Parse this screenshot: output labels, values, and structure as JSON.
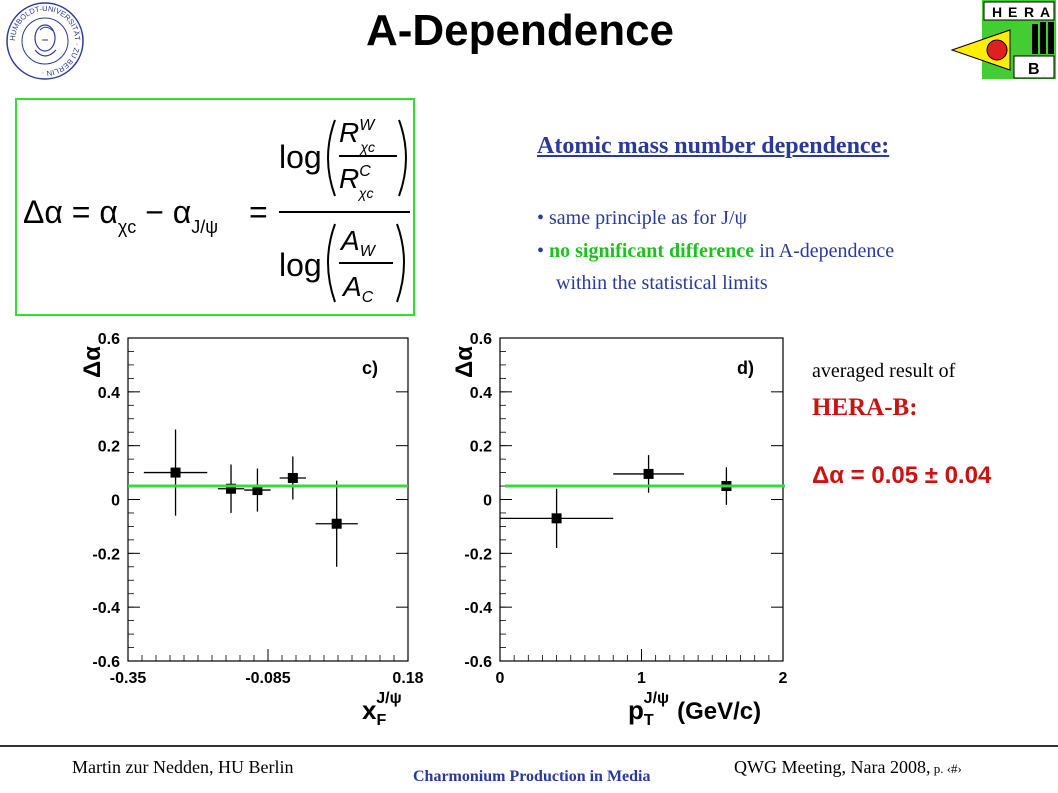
{
  "title": "A-Dependence",
  "formula": {
    "lhs": "Δα = α",
    "sub1": "χc",
    "minus": " − α",
    "sub2": "J/ψ",
    "eq": "=",
    "log": "log",
    "R": "R",
    "sup_w": "W",
    "sup_c": "C",
    "A": "A",
    "sub_w": "W",
    "sub_c": "C"
  },
  "text": {
    "heading": "Atomic mass number dependence:",
    "bullet1": "• same principle as for J/ψ",
    "bullet2_mark": "• ",
    "bullet2_strong": "no significant difference",
    "bullet2_rest": " in A-dependence",
    "bullet3": "within the statistical limits",
    "avg_line1": "averaged result of",
    "avg_line2": "HERA-B:",
    "avg_line3": "Δα = 0.05 ± 0.04"
  },
  "footer": {
    "left": "Martin zur Nedden, HU Berlin",
    "center": "Charmonium Production in Media",
    "right": "QWG Meeting, Nara 2008,",
    "right_small": " p. ‹#›"
  },
  "logos": {
    "left_seal_text": "HUMBOLDT-UNIVERSITÄT · ZU BERLIN ·",
    "right_letters": [
      "H",
      "E",
      "R",
      "A",
      "B"
    ]
  },
  "colors": {
    "accent_blue": "#2a3a9a",
    "green": "#1fc11f",
    "red": "#cc1111",
    "fit_line": "#33dd33"
  },
  "chart_data": [
    {
      "type": "scatter",
      "panel_label": "c)",
      "ylabel": "Δα",
      "xlabel": "x",
      "xlabel_sub": "F",
      "xlabel_sup": "J/ψ",
      "xlim": [
        -0.35,
        0.18
      ],
      "ylim": [
        -0.6,
        0.6
      ],
      "xticks": [
        -0.35,
        -0.085,
        0.18
      ],
      "xtick_labels": [
        "-0.35",
        "-0.085",
        "0.18"
      ],
      "yticks": [
        -0.6,
        -0.4,
        -0.2,
        0,
        0.2,
        0.4,
        0.6
      ],
      "ytick_labels": [
        "-0.6",
        "-0.4",
        "-0.2",
        "0",
        "0.2",
        "0.4",
        "0.6"
      ],
      "points": [
        {
          "x": -0.26,
          "y": 0.1,
          "xerr": 0.06,
          "yerr": 0.16
        },
        {
          "x": -0.155,
          "y": 0.04,
          "xerr": 0.025,
          "yerr": 0.09
        },
        {
          "x": -0.105,
          "y": 0.035,
          "xerr": 0.025,
          "yerr": 0.08
        },
        {
          "x": -0.038,
          "y": 0.08,
          "xerr": 0.025,
          "yerr": 0.08
        },
        {
          "x": 0.045,
          "y": -0.09,
          "xerr": 0.04,
          "yerr": 0.16
        }
      ],
      "fit_value": 0.05
    },
    {
      "type": "scatter",
      "panel_label": "d)",
      "ylabel": "Δα",
      "xlabel": "p",
      "xlabel_sub": "T",
      "xlabel_sup": "J/ψ",
      "xlabel_unit": "(GeV/c)",
      "xlim": [
        0,
        2
      ],
      "ylim": [
        -0.6,
        0.6
      ],
      "xticks": [
        0,
        1,
        2
      ],
      "xtick_labels": [
        "0",
        "1",
        "2"
      ],
      "yticks": [
        -0.6,
        -0.4,
        -0.2,
        0,
        0.2,
        0.4,
        0.6
      ],
      "ytick_labels": [
        "-0.6",
        "-0.4",
        "-0.2",
        "0",
        "0.2",
        "0.4",
        "0.6"
      ],
      "points": [
        {
          "x": 0.4,
          "y": -0.07,
          "xerr": 0.4,
          "yerr": 0.11
        },
        {
          "x": 1.05,
          "y": 0.095,
          "xerr": 0.25,
          "yerr": 0.07
        },
        {
          "x": 1.6,
          "y": 0.05,
          "xerr": 0.3,
          "yerr": 0.07
        }
      ],
      "fit_value": 0.05
    }
  ]
}
